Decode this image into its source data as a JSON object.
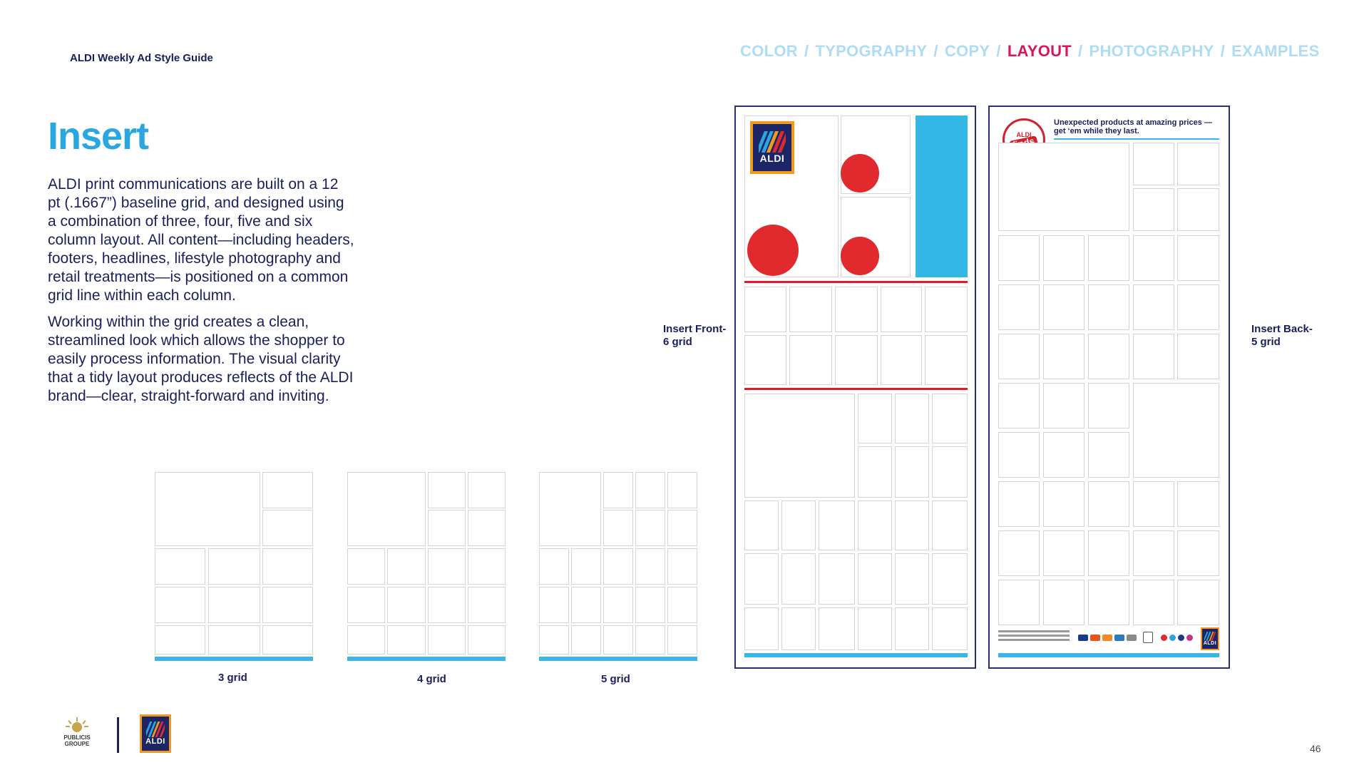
{
  "header": {
    "guide_title": "ALDI Weekly Ad Style Guide",
    "nav": [
      {
        "label": "COLOR",
        "active": false
      },
      {
        "label": "TYPOGRAPHY",
        "active": false
      },
      {
        "label": "COPY",
        "active": false
      },
      {
        "label": "LAYOUT",
        "active": true
      },
      {
        "label": "PHOTOGRAPHY",
        "active": false
      },
      {
        "label": "EXAMPLES",
        "active": false
      }
    ],
    "nav_separator": "/"
  },
  "main": {
    "title": "Insert",
    "paragraphs": [
      "ALDI print communications are built on a 12 pt (.1667”) baseline grid, and designed using a combination of three, four, five and six column layout. All content—including headers, footers, headlines, lifestyle photography and retail treatments—is positioned on a common grid line within each column.",
      "Working within the grid creates a clean, streamlined look which allows the shopper to easily process information. The visual clarity that a tidy layout produces reflects of the ALDI brand—clear, straight-forward and inviting."
    ]
  },
  "grids": {
    "three": "3 grid",
    "four": "4 grid",
    "five": "5 grid"
  },
  "inserts": {
    "front_label_1": "Insert Front-",
    "front_label_2": "6 grid",
    "back_label_1": "Insert Back-",
    "back_label_2": "5 grid",
    "back_headline_1": "Unexpected products at amazing prices —",
    "back_headline_2": "get ‘em while they last.",
    "finds_badge_top": "ALDI",
    "finds_badge_bottom": "finds"
  },
  "logos": {
    "aldi_wordmark": "ALDI",
    "publicis_line1": "PUBLICIS",
    "publicis_line2": "GROUPE"
  },
  "page_number": "46",
  "colors": {
    "navy": "#1a1f5c",
    "aldi_blue": "#2aa7e0",
    "nav_inactive": "#aeddf3",
    "nav_active": "#d5175c",
    "aldi_red": "#e02a2e",
    "aldi_orange": "#f29a1f"
  }
}
